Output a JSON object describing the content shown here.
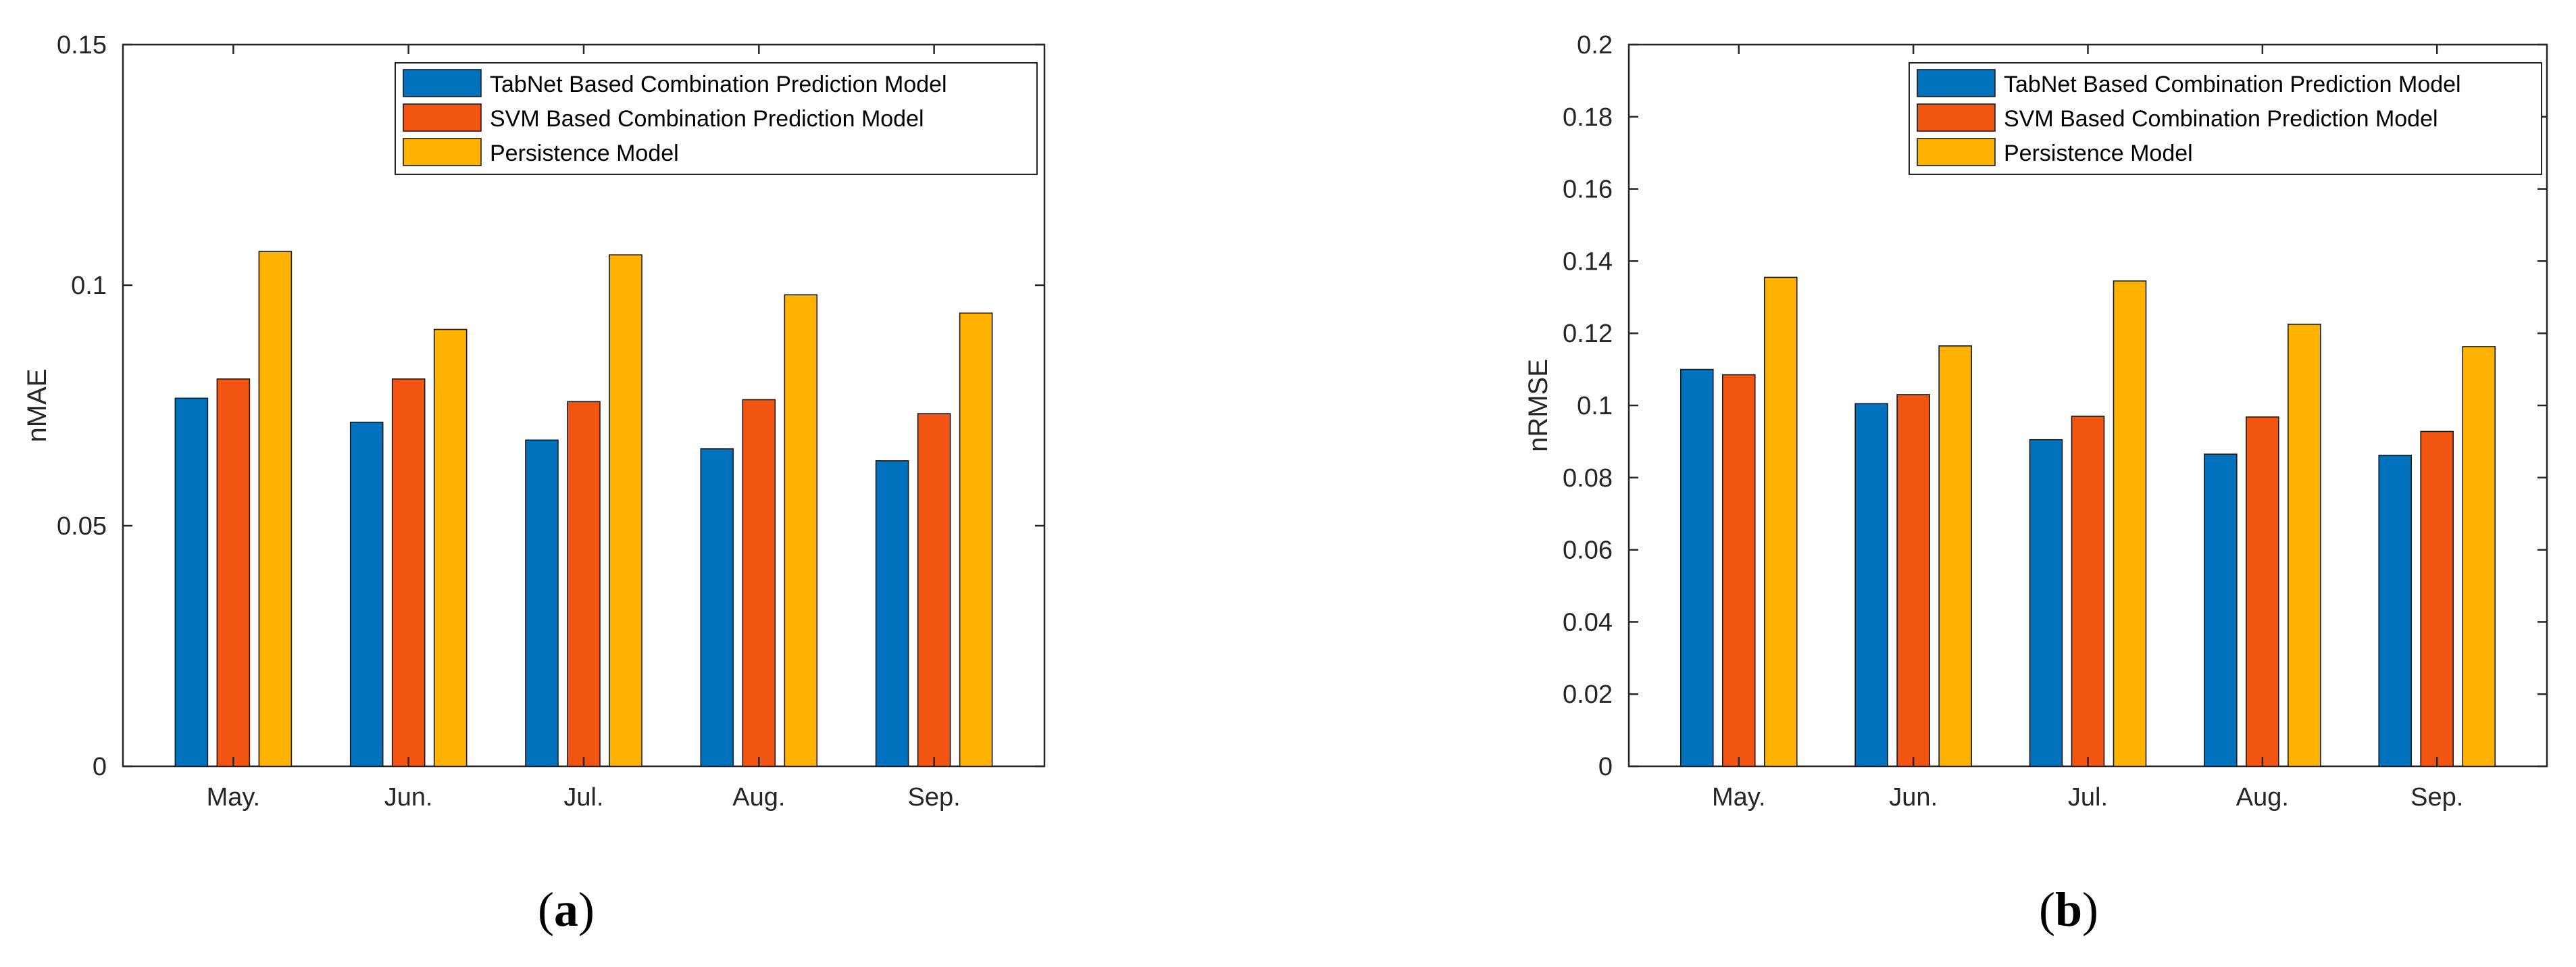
{
  "chart_data": [
    {
      "type": "bar",
      "panel_label": "a",
      "title": "",
      "xlabel": "",
      "ylabel": "nMAE",
      "ylim": [
        0,
        0.15
      ],
      "yticks": [
        0,
        0.05,
        0.1,
        0.15
      ],
      "ytick_labels": [
        "0",
        "0.05",
        "0.1",
        "0.15"
      ],
      "categories": [
        "May.",
        "Jun.",
        "Jul.",
        "Aug.",
        "Sep."
      ],
      "legend_position": "top-right",
      "series": [
        {
          "name": "TabNet Based Combination Prediction Model",
          "color": "#0072BD",
          "values": [
            0.0765,
            0.0715,
            0.0678,
            0.066,
            0.0635
          ]
        },
        {
          "name": "SVM Based Combination Prediction Model",
          "color": "#F25412",
          "values": [
            0.0805,
            0.0805,
            0.0758,
            0.0762,
            0.0733
          ]
        },
        {
          "name": "Persistence Model",
          "color": "#FFB300",
          "values": [
            0.107,
            0.0908,
            0.1063,
            0.098,
            0.0942
          ]
        }
      ]
    },
    {
      "type": "bar",
      "panel_label": "b",
      "title": "",
      "xlabel": "",
      "ylabel": "nRMSE",
      "ylim": [
        0,
        0.2
      ],
      "yticks": [
        0,
        0.02,
        0.04,
        0.06,
        0.08,
        0.1,
        0.12,
        0.14,
        0.16,
        0.18,
        0.2
      ],
      "ytick_labels": [
        "0",
        "0.02",
        "0.04",
        "0.06",
        "0.08",
        "0.1",
        "0.12",
        "0.14",
        "0.16",
        "0.18",
        "0.2"
      ],
      "categories": [
        "May.",
        "Jun.",
        "Jul.",
        "Aug.",
        "Sep."
      ],
      "legend_position": "top-right",
      "series": [
        {
          "name": "TabNet Based Combination Prediction Model",
          "color": "#0072BD",
          "values": [
            0.11,
            0.1005,
            0.0905,
            0.0865,
            0.0862
          ]
        },
        {
          "name": "SVM Based Combination Prediction Model",
          "color": "#F25412",
          "values": [
            0.1085,
            0.103,
            0.097,
            0.0968,
            0.0928
          ]
        },
        {
          "name": "Persistence Model",
          "color": "#FFB300",
          "values": [
            0.1355,
            0.1165,
            0.1345,
            0.1225,
            0.1163
          ]
        }
      ]
    }
  ]
}
